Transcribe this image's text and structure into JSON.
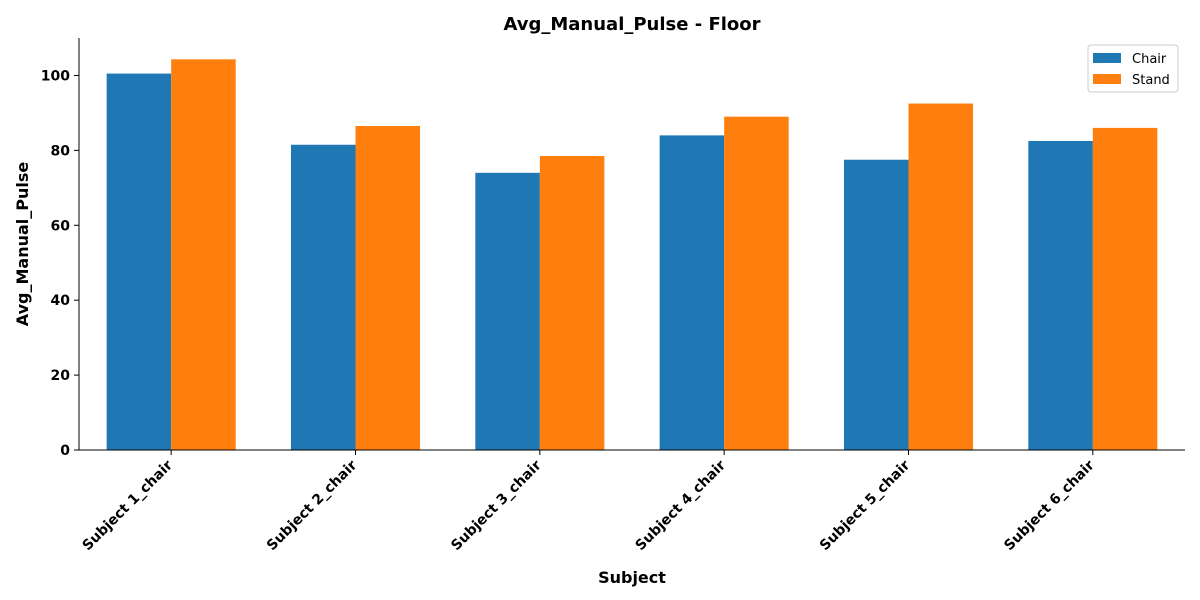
{
  "chart_data": {
    "type": "bar",
    "title": "Avg_Manual_Pulse - Floor",
    "xlabel": "Subject",
    "ylabel": "Avg_Manual_Pulse",
    "categories": [
      "Subject 1_chair",
      "Subject 2_chair",
      "Subject 3_chair",
      "Subject 4_chair",
      "Subject 5_chair",
      "Subject 6_chair"
    ],
    "series": [
      {
        "name": "Chair",
        "color": "#1f77b4",
        "values": [
          100.5,
          81.5,
          74.0,
          84.0,
          77.5,
          82.5
        ]
      },
      {
        "name": "Stand",
        "color": "#ff7f0e",
        "values": [
          104.3,
          86.5,
          78.5,
          89.0,
          92.5,
          86.0
        ]
      }
    ],
    "ylim": [
      0,
      110
    ],
    "yticks": [
      0,
      20,
      40,
      60,
      80,
      100
    ],
    "grid": false,
    "legend_position": "top-right"
  }
}
